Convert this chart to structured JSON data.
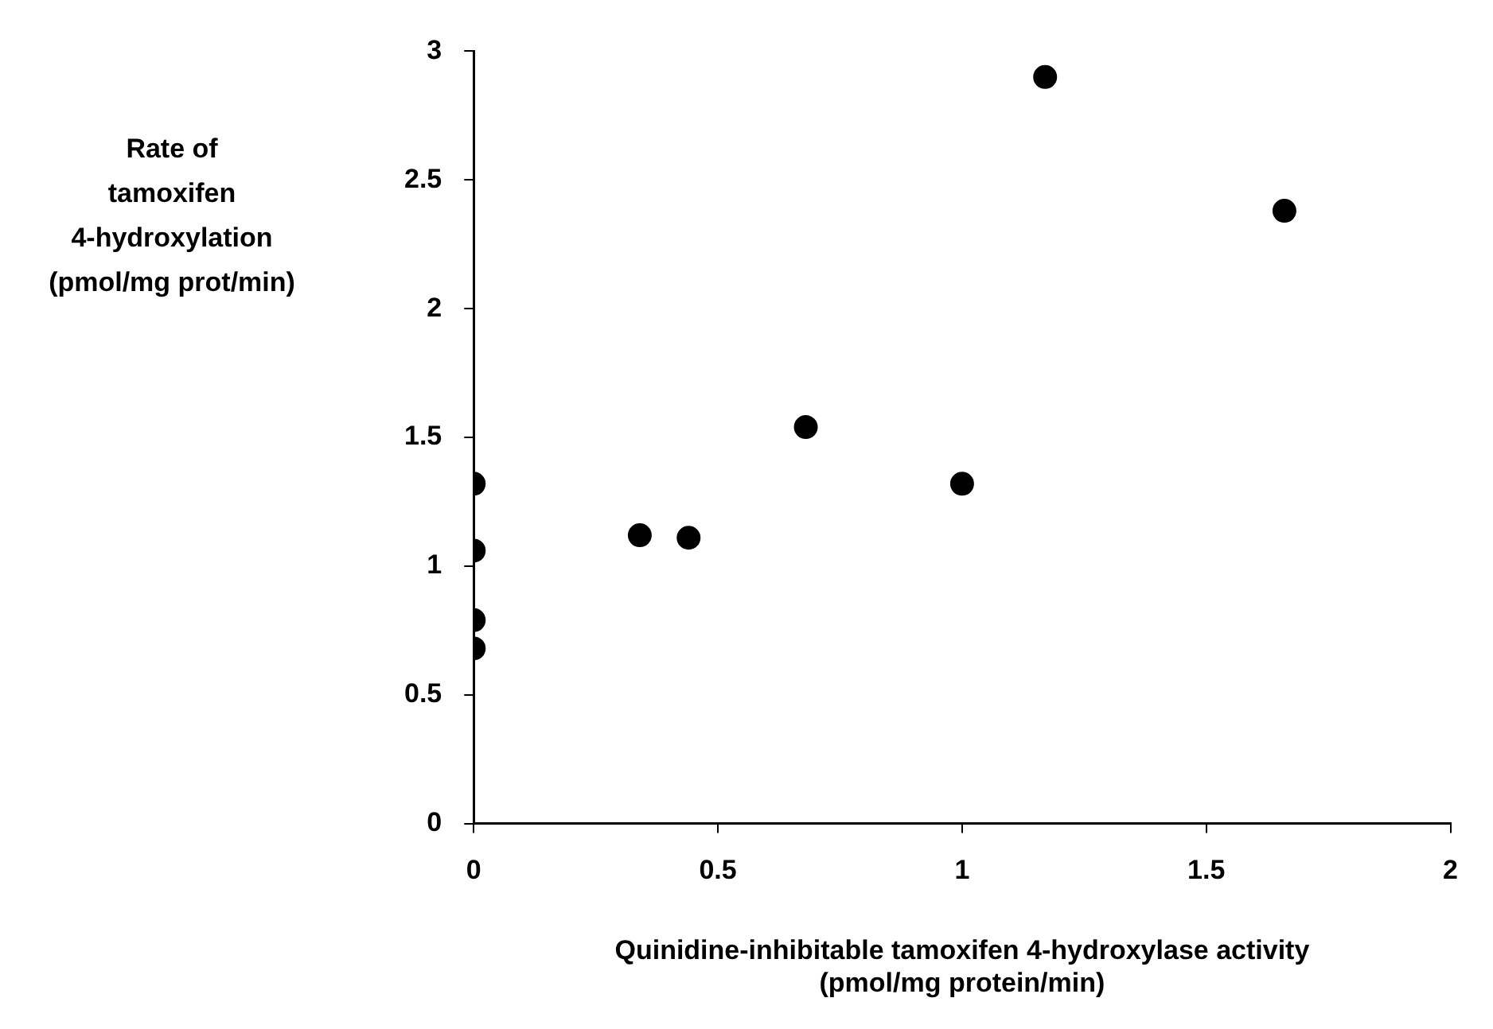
{
  "chart_data": {
    "type": "scatter",
    "xlabel": "Quinidine-inhibitable tamoxifen 4-hydroxylase activity\n(pmol/mg protein/min)",
    "ylabel": "Rate of\ntamoxifen\n4-hydroxylation\n(pmol/mg prot/min)",
    "series": [
      {
        "color": "#000000",
        "x": [
          0,
          0,
          0,
          0,
          0.34,
          0.44,
          0.68,
          1.0,
          1.17,
          1.66
        ],
        "values": [
          1.32,
          1.06,
          0.79,
          0.68,
          1.12,
          1.11,
          1.54,
          1.32,
          2.9,
          2.38
        ]
      }
    ],
    "xlim": [
      0,
      2
    ],
    "xticks": [
      0,
      0.5,
      1,
      1.5,
      2
    ],
    "ylim": [
      0,
      3
    ],
    "yticks": [
      0,
      0.5,
      1,
      1.5,
      2,
      2.5,
      3
    ],
    "grid": false,
    "legend": false,
    "marker": "circle"
  }
}
